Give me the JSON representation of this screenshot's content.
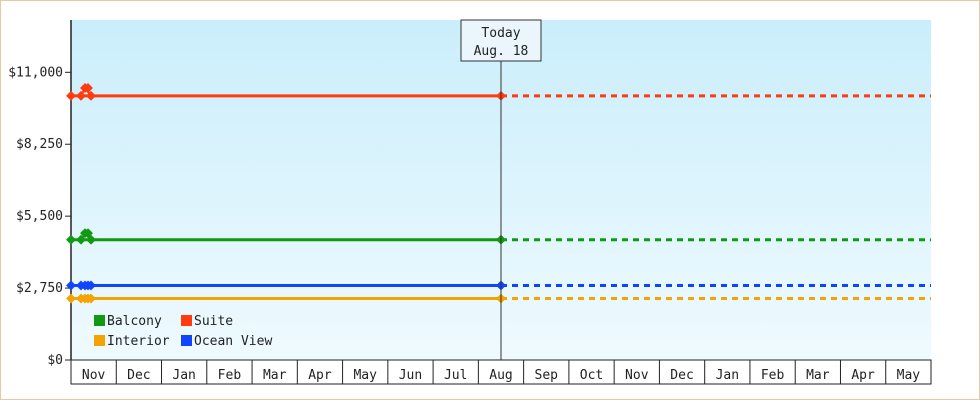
{
  "chart_data": {
    "type": "line",
    "title": "",
    "xlabel": "",
    "ylabel": "",
    "ylim": [
      0,
      13000
    ],
    "y_ticks": [
      0,
      2750,
      5500,
      8250,
      11000
    ],
    "y_tick_labels": [
      "$0",
      "$2,750",
      "$5,500",
      "$8,250",
      "$11,000"
    ],
    "x_labels": [
      "Nov",
      "Dec",
      "Jan",
      "Feb",
      "Mar",
      "Apr",
      "May",
      "Jun",
      "Jul",
      "Aug",
      "Sep",
      "Oct",
      "Nov",
      "Dec",
      "Jan",
      "Feb",
      "Mar",
      "Apr",
      "May"
    ],
    "grid": false,
    "legend_placement": "bottom-left",
    "today_marker": {
      "line1": "Today",
      "line2": "Aug. 18",
      "month_index": 9.5
    },
    "series": [
      {
        "name": "Balcony",
        "color": "#119911",
        "start_value": 4600,
        "peak_value": 4850,
        "history_value": 4600,
        "projected_value": 4600
      },
      {
        "name": "Suite",
        "color": "#ff3b0f",
        "start_value": 10100,
        "peak_value": 10400,
        "history_value": 10100,
        "projected_value": 10100
      },
      {
        "name": "Interior",
        "color": "#f5a300",
        "start_value": 2350,
        "peak_value": 2350,
        "history_value": 2350,
        "projected_value": 2350
      },
      {
        "name": "Ocean View",
        "color": "#1144ff",
        "start_value": 2850,
        "peak_value": 2850,
        "history_value": 2850,
        "projected_value": 2850
      }
    ],
    "legend_rows": [
      [
        "Balcony",
        "Suite"
      ],
      [
        "Interior",
        "Ocean View"
      ]
    ]
  }
}
